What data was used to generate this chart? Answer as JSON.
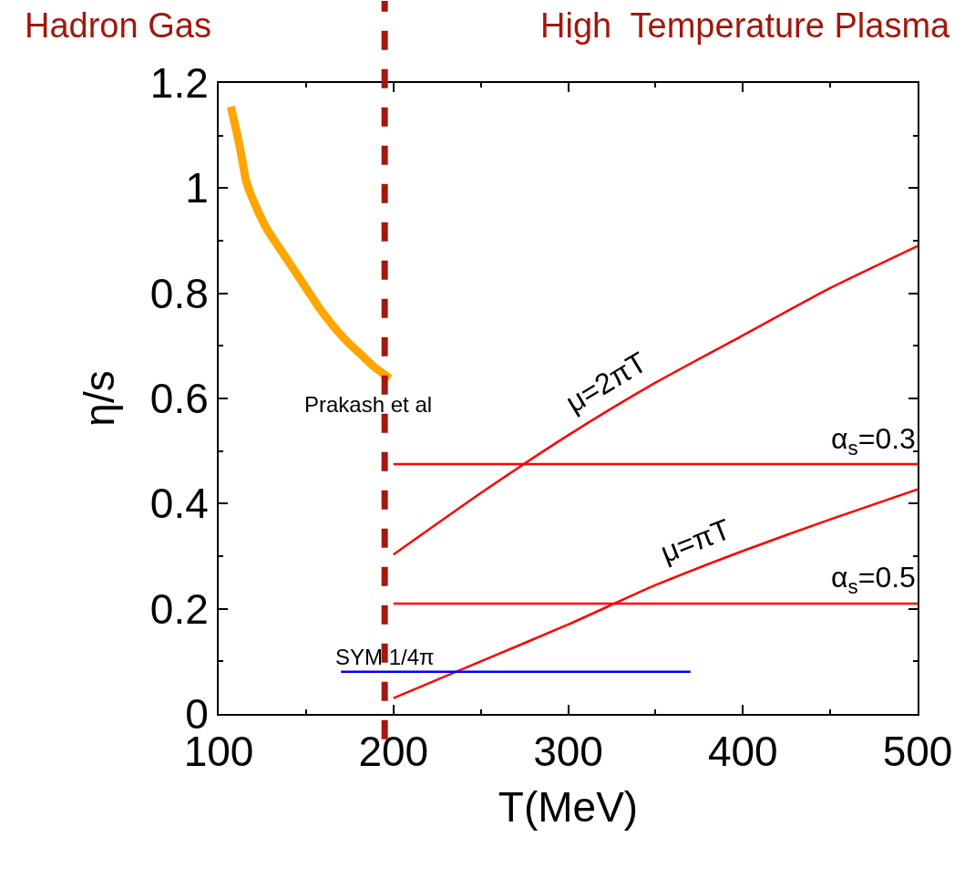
{
  "chart_data": {
    "type": "line",
    "xlabel": "T(MeV)",
    "ylabel": "η/s",
    "xlim": [
      100,
      500
    ],
    "xticks": [
      100,
      200,
      300,
      400,
      500
    ],
    "ylim": [
      0,
      1.2
    ],
    "yticks": [
      0,
      0.2,
      0.4,
      0.6,
      0.8,
      1,
      1.2
    ],
    "grid": false,
    "legend": false,
    "marker": "none",
    "series": [
      {
        "name": "Prakash et al",
        "color": "#ffa500",
        "x": [
          107,
          112,
          116,
          122,
          128,
          135,
          142,
          150,
          157,
          165,
          173,
          181,
          189,
          198
        ],
        "values": [
          1.155,
          1.08,
          1.01,
          0.96,
          0.92,
          0.885,
          0.85,
          0.81,
          0.775,
          0.74,
          0.71,
          0.685,
          0.66,
          0.638
        ]
      },
      {
        "name": "μ=2πT",
        "color": "#ff0000",
        "x": [
          200,
          250,
          300,
          350,
          400,
          450,
          500
        ],
        "values": [
          0.303,
          0.42,
          0.53,
          0.63,
          0.72,
          0.81,
          0.89
        ]
      },
      {
        "name": "α$_{s}$=0.3",
        "color": "#ff0000",
        "x": [
          200,
          500
        ],
        "values": [
          0.475,
          0.475
        ]
      },
      {
        "name": "μ=πT",
        "color": "#ff0000",
        "x": [
          200,
          250,
          300,
          350,
          400,
          450,
          500
        ],
        "values": [
          0.03,
          0.1,
          0.17,
          0.245,
          0.31,
          0.37,
          0.427
        ]
      },
      {
        "name": "α$_{s}$=0.5",
        "color": "#ff0000",
        "x": [
          200,
          500
        ],
        "values": [
          0.21,
          0.21
        ]
      },
      {
        "name": "SYM 1/4π",
        "color": "#0000ff",
        "x": [
          170,
          370
        ],
        "values": [
          0.08,
          0.08
        ]
      }
    ],
    "ref_lines": [
      {
        "axis": "x",
        "value": 195,
        "color": "#a0180e",
        "line_style": "dashed"
      }
    ],
    "annotations": [
      "Hadron Gas",
      "High  Temperature Plasma"
    ]
  }
}
